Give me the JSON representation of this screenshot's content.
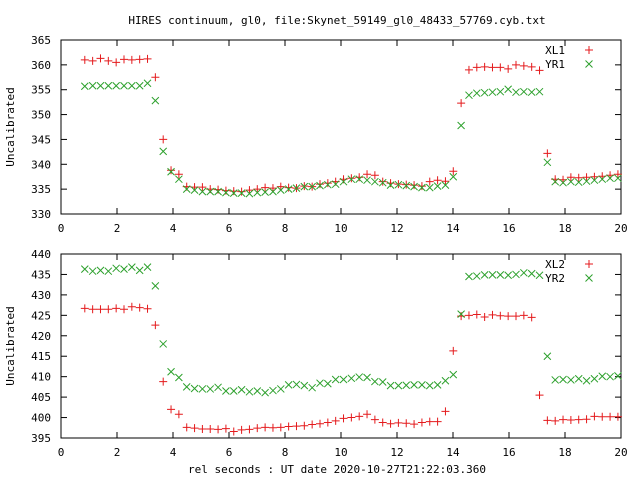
{
  "figure": {
    "title": "HIRES continuum, gl0, file:Skynet_59149_gl0_48433_57769.cyb.txt",
    "xlabel": "rel seconds : UT date 2020-10-27T21:22:03.360"
  },
  "colors": {
    "series_a": "#e41a1c",
    "series_b": "#2ca02c"
  },
  "chart_data": [
    {
      "type": "scatter",
      "ylabel": "Uncalibrated",
      "xlim": [
        0,
        20
      ],
      "ylim": [
        330,
        365
      ],
      "xticks": [
        0,
        2,
        4,
        6,
        8,
        10,
        12,
        14,
        16,
        18,
        20
      ],
      "yticks": [
        330,
        335,
        340,
        345,
        350,
        355,
        360,
        365
      ],
      "legend": "top-right",
      "grid": false,
      "x": [
        0.85,
        1.13,
        1.41,
        1.69,
        1.97,
        2.25,
        2.53,
        2.81,
        3.09,
        3.37,
        3.65,
        3.93,
        4.21,
        4.49,
        4.77,
        5.05,
        5.33,
        5.61,
        5.89,
        6.17,
        6.45,
        6.73,
        7.01,
        7.29,
        7.57,
        7.85,
        8.13,
        8.41,
        8.69,
        8.97,
        9.25,
        9.53,
        9.81,
        10.09,
        10.37,
        10.65,
        10.93,
        11.21,
        11.49,
        11.77,
        12.05,
        12.33,
        12.61,
        12.89,
        13.17,
        13.45,
        13.73,
        14.01,
        14.29,
        14.57,
        14.85,
        15.13,
        15.41,
        15.69,
        15.97,
        16.25,
        16.53,
        16.81,
        17.09,
        17.37,
        17.65,
        17.93,
        18.21,
        18.49,
        18.77,
        19.05,
        19.33,
        19.61,
        19.89
      ],
      "series": [
        {
          "name": "XL1",
          "marker": "plus",
          "values": [
            361.0,
            360.8,
            361.3,
            360.8,
            360.5,
            361.1,
            361.0,
            361.1,
            361.2,
            357.5,
            345.0,
            338.8,
            338.0,
            335.5,
            335.4,
            335.4,
            335.0,
            334.9,
            334.7,
            334.6,
            334.5,
            334.8,
            335.0,
            335.3,
            335.2,
            335.5,
            335.3,
            335.2,
            335.6,
            335.5,
            336.0,
            336.2,
            336.5,
            337.0,
            337.2,
            337.4,
            338.0,
            337.8,
            336.5,
            336.2,
            336.0,
            335.9,
            335.8,
            335.6,
            336.5,
            336.8,
            336.6,
            338.6,
            352.3,
            359.0,
            359.5,
            359.6,
            359.5,
            359.5,
            359.2,
            360.0,
            359.8,
            359.6,
            358.9,
            342.2,
            337.0,
            336.9,
            337.4,
            337.3,
            337.4,
            337.5,
            337.6,
            337.8,
            338.0
          ]
        },
        {
          "name": "YR1",
          "marker": "cross",
          "values": [
            355.7,
            355.8,
            355.8,
            355.8,
            355.8,
            355.8,
            355.8,
            355.8,
            356.3,
            352.8,
            342.6,
            338.5,
            337.0,
            335.0,
            334.8,
            334.5,
            334.5,
            334.5,
            334.3,
            334.2,
            334.2,
            334.1,
            334.3,
            334.4,
            334.5,
            334.8,
            335.0,
            335.2,
            335.5,
            335.5,
            335.7,
            335.9,
            336.0,
            336.5,
            337.0,
            337.0,
            336.8,
            336.5,
            336.3,
            335.8,
            335.9,
            335.7,
            335.5,
            335.3,
            335.3,
            335.6,
            335.8,
            337.5,
            347.8,
            353.9,
            354.3,
            354.4,
            354.5,
            354.6,
            355.1,
            354.5,
            354.6,
            354.5,
            354.6,
            340.4,
            336.5,
            336.3,
            336.5,
            336.4,
            336.6,
            336.8,
            337.0,
            337.2,
            337.2
          ]
        }
      ]
    },
    {
      "type": "scatter",
      "ylabel": "Uncalibrated",
      "xlim": [
        0,
        20
      ],
      "ylim": [
        395,
        440
      ],
      "xticks": [
        0,
        2,
        4,
        6,
        8,
        10,
        12,
        14,
        16,
        18,
        20
      ],
      "yticks": [
        395,
        400,
        405,
        410,
        415,
        420,
        425,
        430,
        435,
        440
      ],
      "legend": "top-right",
      "grid": false,
      "x": [
        0.85,
        1.13,
        1.41,
        1.69,
        1.97,
        2.25,
        2.53,
        2.81,
        3.09,
        3.37,
        3.65,
        3.93,
        4.21,
        4.49,
        4.77,
        5.05,
        5.33,
        5.61,
        5.89,
        6.17,
        6.45,
        6.73,
        7.01,
        7.29,
        7.57,
        7.85,
        8.13,
        8.41,
        8.69,
        8.97,
        9.25,
        9.53,
        9.81,
        10.09,
        10.37,
        10.65,
        10.93,
        11.21,
        11.49,
        11.77,
        12.05,
        12.33,
        12.61,
        12.89,
        13.17,
        13.45,
        13.73,
        14.01,
        14.29,
        14.57,
        14.85,
        15.13,
        15.41,
        15.69,
        15.97,
        16.25,
        16.53,
        16.81,
        17.09,
        17.37,
        17.65,
        17.93,
        18.21,
        18.49,
        18.77,
        19.05,
        19.33,
        19.61,
        19.89
      ],
      "series": [
        {
          "name": "XL2",
          "marker": "plus",
          "values": [
            426.7,
            426.5,
            426.5,
            426.5,
            426.7,
            426.5,
            427.1,
            426.9,
            426.6,
            422.6,
            408.8,
            402.0,
            400.8,
            397.6,
            397.4,
            397.2,
            397.2,
            397.1,
            397.3,
            396.6,
            397.0,
            397.1,
            397.4,
            397.6,
            397.5,
            397.6,
            397.8,
            397.9,
            398.0,
            398.3,
            398.5,
            398.8,
            399.2,
            399.8,
            400.0,
            400.3,
            400.8,
            399.5,
            398.8,
            398.5,
            398.7,
            398.6,
            398.4,
            398.8,
            399.0,
            399.0,
            401.5,
            416.3,
            424.8,
            425.0,
            425.2,
            424.6,
            425.1,
            424.9,
            424.8,
            424.8,
            425.0,
            424.5,
            405.5,
            399.3,
            399.2,
            399.5,
            399.4,
            399.5,
            399.6,
            400.3,
            400.2,
            400.2,
            400.2
          ]
        },
        {
          "name": "YR2",
          "marker": "cross",
          "values": [
            436.3,
            435.8,
            436.0,
            435.8,
            436.5,
            436.3,
            436.8,
            436.0,
            436.8,
            432.2,
            418.0,
            411.2,
            409.8,
            407.5,
            407.1,
            407.0,
            407.0,
            407.4,
            406.5,
            406.5,
            406.8,
            406.3,
            406.5,
            406.1,
            406.6,
            407.0,
            408.0,
            408.1,
            407.8,
            407.3,
            408.4,
            408.3,
            409.3,
            409.3,
            409.6,
            409.9,
            409.8,
            408.8,
            408.7,
            407.8,
            407.8,
            407.9,
            408.0,
            408.0,
            407.8,
            408.0,
            409.0,
            410.5,
            425.3,
            434.5,
            434.6,
            434.9,
            434.9,
            434.9,
            434.8,
            435.0,
            435.4,
            435.2,
            434.8,
            415.0,
            409.2,
            409.3,
            409.2,
            409.5,
            409.0,
            409.5,
            410.1,
            410.0,
            410.2
          ]
        }
      ]
    }
  ]
}
